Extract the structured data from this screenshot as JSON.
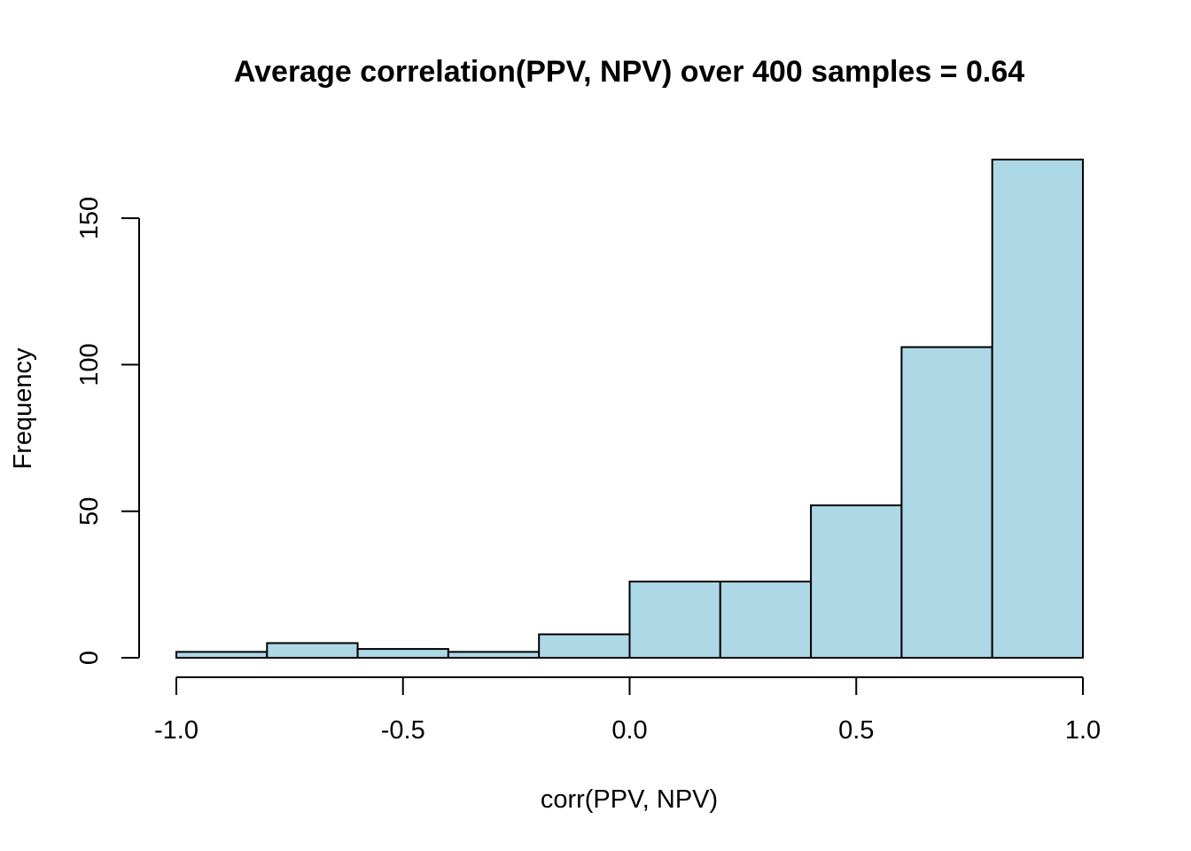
{
  "chart_data": {
    "type": "bar",
    "subtype": "histogram",
    "title": "Average correlation(PPV, NPV) over 400 samples = 0.64",
    "xlabel": "corr(PPV, NPV)",
    "ylabel": "Frequency",
    "bin_edges": [
      -1.0,
      -0.8,
      -0.6,
      -0.4,
      -0.2,
      0.0,
      0.2,
      0.4,
      0.6,
      0.8,
      1.0
    ],
    "values": [
      2,
      5,
      3,
      2,
      8,
      26,
      26,
      52,
      106,
      170
    ],
    "xlim": [
      -1.0,
      1.0
    ],
    "ylim": [
      0,
      170
    ],
    "x_ticks": [
      -1.0,
      -0.5,
      0.0,
      0.5,
      1.0
    ],
    "x_tick_labels": [
      "-1.0",
      "-0.5",
      "0.0",
      "0.5",
      "1.0"
    ],
    "y_ticks": [
      0,
      50,
      100,
      150
    ],
    "y_tick_labels": [
      "0",
      "50",
      "100",
      "150"
    ],
    "bar_color": "#add8e6",
    "grid": false,
    "legend": "none"
  }
}
